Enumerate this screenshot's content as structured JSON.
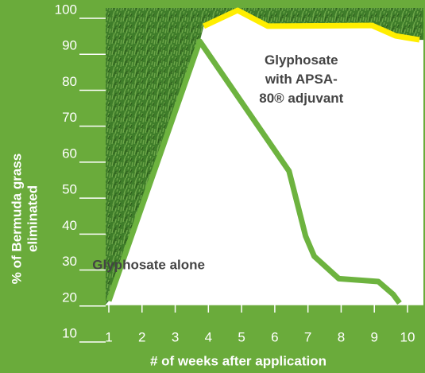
{
  "chart_data": {
    "type": "line",
    "x_label": "# of weeks after application",
    "y_label": [
      "% of Bermuda grass",
      "eliminated"
    ],
    "xlim": [
      1,
      10
    ],
    "xticks": [
      1,
      2,
      3,
      4,
      5,
      6,
      7,
      8,
      9,
      10
    ],
    "ylim": [
      10,
      100
    ],
    "yticks": [
      10,
      20,
      30,
      40,
      50,
      60,
      70,
      80,
      90,
      100
    ],
    "series": [
      {
        "color": "#6db33f",
        "x": [
          1,
          3.74,
          6.43,
          6.93,
          7.19,
          7.93,
          9.12,
          9.57,
          9.76
        ],
        "values": [
          19.2,
          91.4,
          55.3,
          37.2,
          31.6,
          25.4,
          24.6,
          21,
          18.6
        ]
      },
      {
        "color": "#ffee00",
        "x": [
          3.86,
          4.88,
          5.79,
          8.93,
          9.64,
          10.36
        ],
        "values": [
          95.6,
          100,
          95.6,
          95.8,
          92.9,
          91.8
        ]
      }
    ],
    "annotations": [
      {
        "lines": [
          "Glyphosate",
          "with APSA-",
          "80® adjuvant"
        ],
        "x": 6.8,
        "y": 86
      },
      {
        "lines": [
          "Glyphosate alone"
        ],
        "x": 2.2,
        "y": 29
      }
    ]
  }
}
